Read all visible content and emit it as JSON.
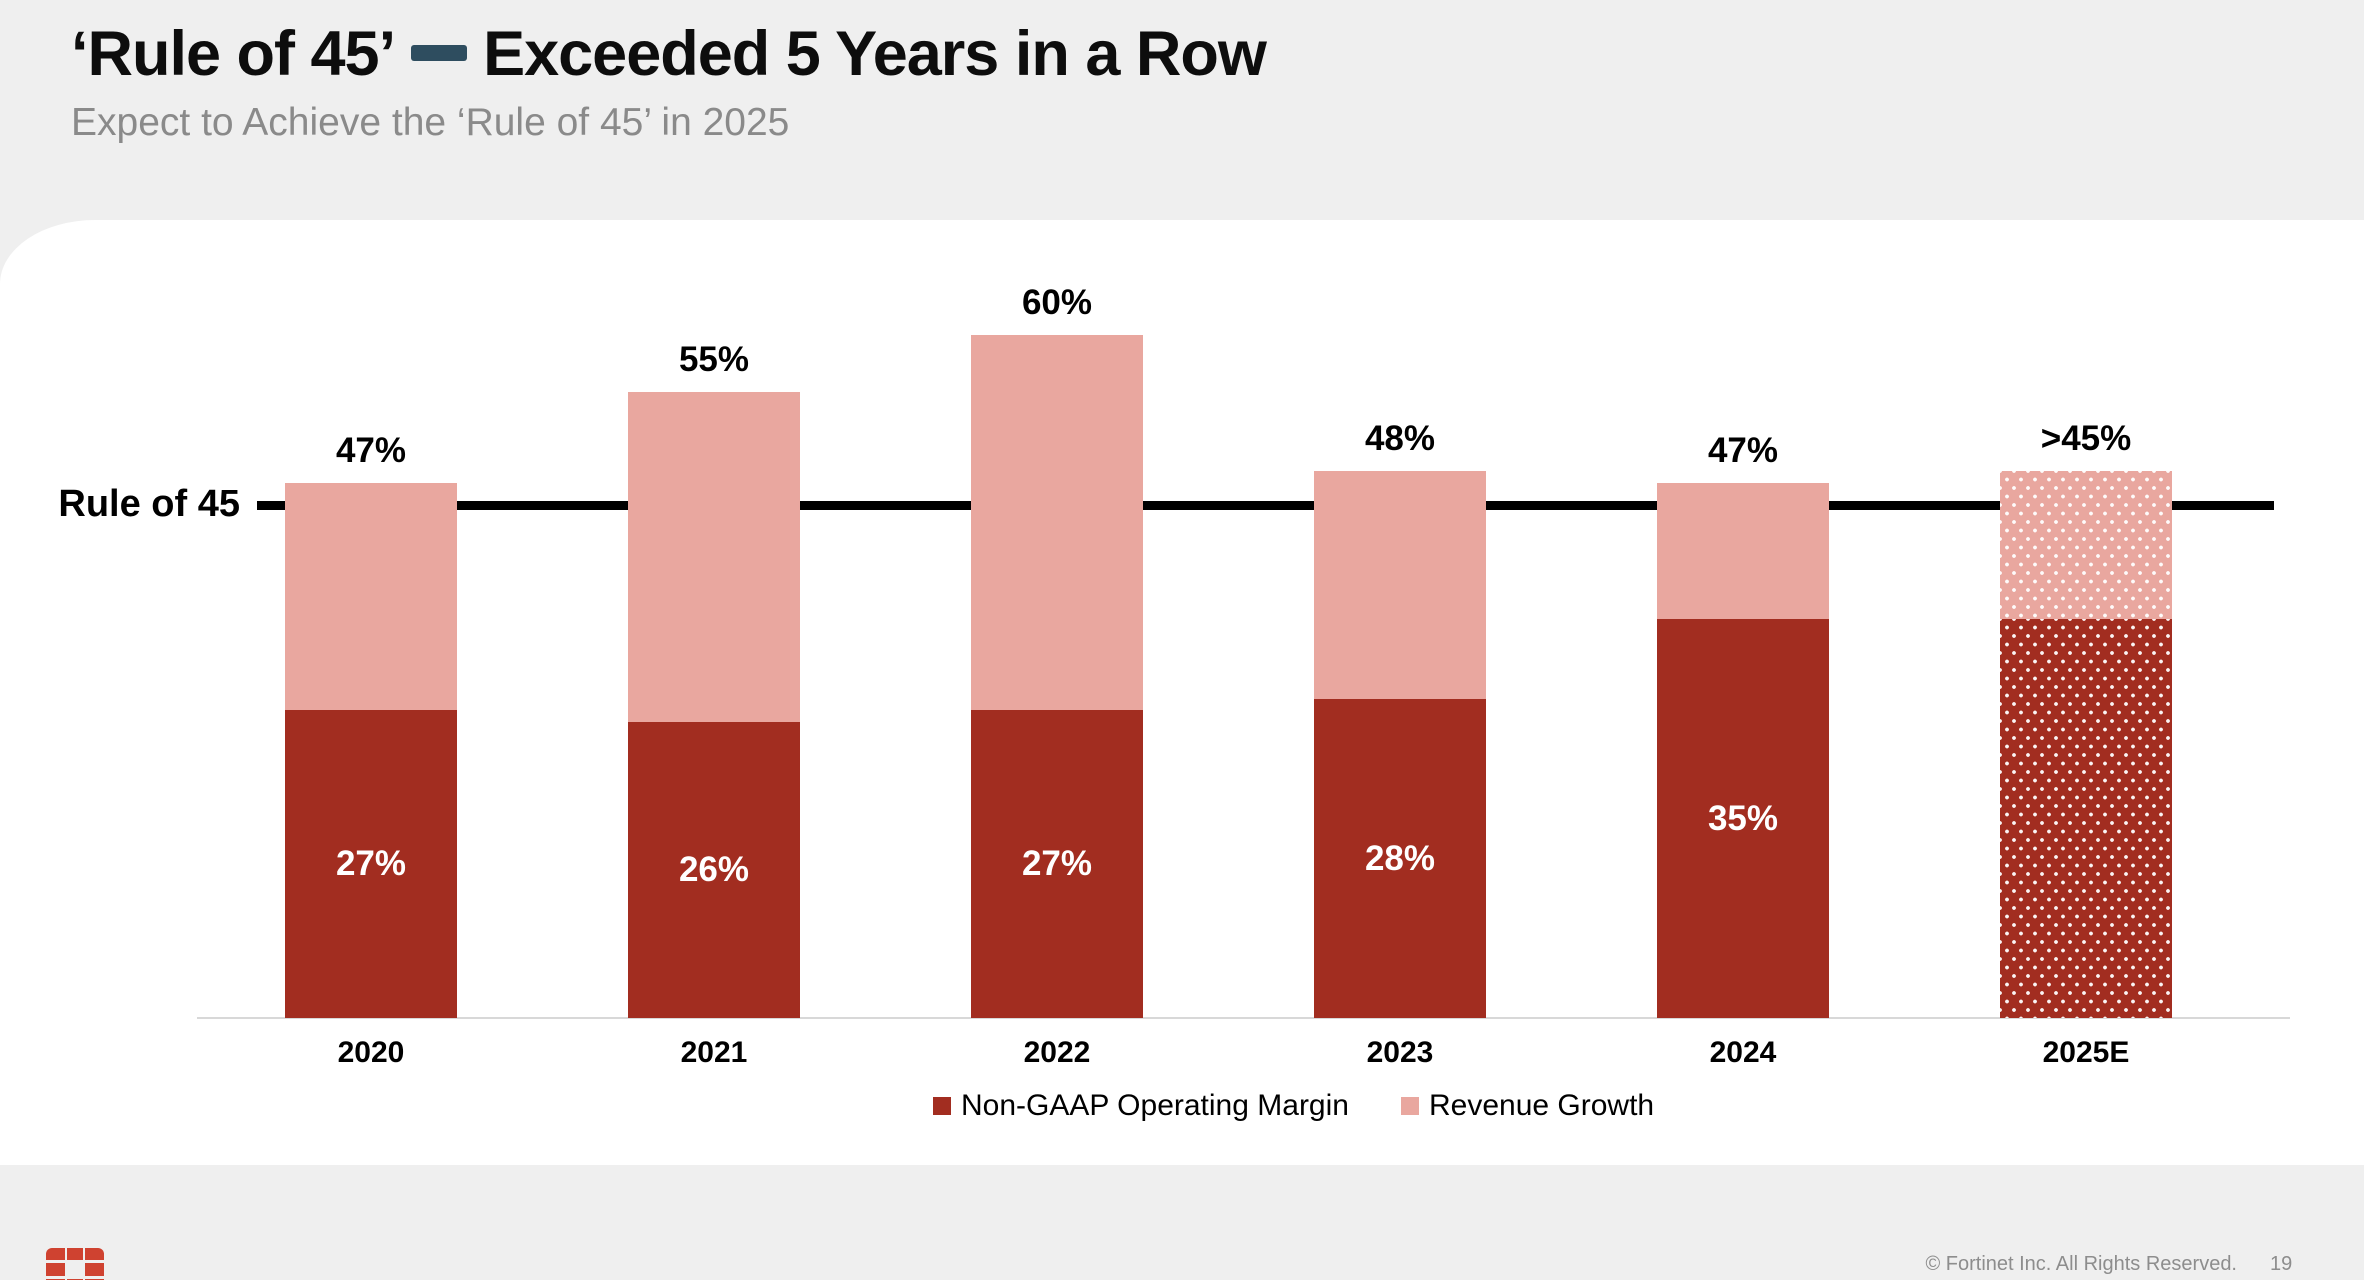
{
  "slide": {
    "title": {
      "pre": "‘Rule of 45’",
      "post": "Exceeded 5 Years in a Row"
    },
    "subtitle": "Expect to Achieve the ‘Rule of 45’ in 2025",
    "footer": {
      "copyright": "© Fortinet Inc. All Rights Reserved.",
      "page_number": "19",
      "logo": "fortinet-grid-logo"
    },
    "colors": {
      "background": "#efefef",
      "card": "#ffffff",
      "margin_bar": "#a22d20",
      "growth_bar": "#e9a79f",
      "rule_line": "#000000",
      "title_dash": "#2e4d5f",
      "subtitle_text": "#8a8a8a",
      "footer_text": "#8d8d8d",
      "axis_line": "#d8d8d8",
      "logo_red": "#cf4230"
    }
  },
  "chart_data": {
    "type": "bar",
    "stacked": true,
    "categories": [
      "2020",
      "2021",
      "2022",
      "2023",
      "2024",
      "2025E"
    ],
    "series": [
      {
        "name": "Non-GAAP Operating Margin",
        "color": "#a22d20",
        "values": [
          27,
          26,
          27,
          28,
          35,
          35
        ],
        "data_labels": [
          "27%",
          "26%",
          "27%",
          "28%",
          "35%",
          ""
        ]
      },
      {
        "name": "Revenue Growth",
        "color": "#e9a79f",
        "values": [
          20,
          29,
          33,
          20,
          12,
          13
        ],
        "data_labels": [
          "",
          "",
          "",
          "",
          "",
          ""
        ]
      }
    ],
    "total_labels": [
      "47%",
      "55%",
      "60%",
      "48%",
      "47%",
      ">45%"
    ],
    "reference_line": {
      "label": "Rule of 45",
      "value": 45
    },
    "estimated_category_index": 5,
    "ylim": [
      0,
      65
    ],
    "grid": false,
    "legend_position": "bottom",
    "note": "2025E bar shown with dotted (estimate) pattern; its segment values are estimated from bar heights"
  }
}
